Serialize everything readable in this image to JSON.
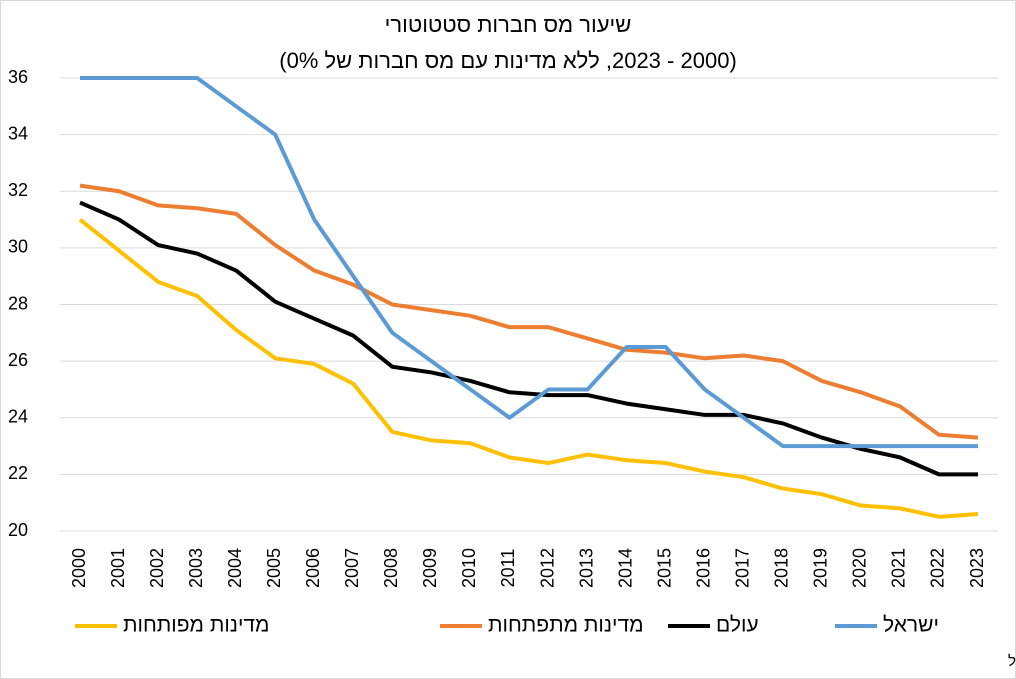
{
  "chart_data": {
    "type": "line",
    "title": "שיעור מס חברות סטטוטורי",
    "subtitle": "(2000 - 2023, ללא מדינות עם מס חברות של 0%)",
    "source": "מקור: OECD Statutory Corporate Income Tax Rates Database ועיבודי בנק ישראל",
    "categories": [
      "2000",
      "2001",
      "2002",
      "2003",
      "2004",
      "2005",
      "2006",
      "2007",
      "2008",
      "2009",
      "2010",
      "2011",
      "2012",
      "2013",
      "2014",
      "2015",
      "2016",
      "2017",
      "2018",
      "2019",
      "2020",
      "2021",
      "2022",
      "2023"
    ],
    "series": [
      {
        "name": "מדינות מפותחות",
        "color": "#ffc000",
        "values": [
          31.0,
          29.9,
          28.8,
          28.3,
          27.1,
          26.1,
          25.9,
          25.2,
          23.5,
          23.2,
          23.1,
          22.6,
          22.4,
          22.7,
          22.5,
          22.4,
          22.1,
          21.9,
          21.5,
          21.3,
          20.9,
          20.8,
          20.5,
          20.6
        ]
      },
      {
        "name": "מדינות מתפתחות",
        "color": "#ed7d31",
        "values": [
          32.2,
          32.0,
          31.5,
          31.4,
          31.2,
          30.1,
          29.2,
          28.7,
          28.0,
          27.8,
          27.6,
          27.2,
          27.2,
          26.8,
          26.4,
          26.3,
          26.1,
          26.2,
          26.0,
          25.3,
          24.9,
          24.4,
          23.4,
          23.3
        ]
      },
      {
        "name": "עולם",
        "color": "#000000",
        "values": [
          31.6,
          31.0,
          30.1,
          29.8,
          29.2,
          28.1,
          27.5,
          26.9,
          25.8,
          25.6,
          25.3,
          24.9,
          24.8,
          24.8,
          24.5,
          24.3,
          24.1,
          24.1,
          23.8,
          23.3,
          22.9,
          22.6,
          22.0,
          22.0
        ]
      },
      {
        "name": "ישראל",
        "color": "#5b9bd5",
        "values": [
          36,
          36,
          36,
          36,
          35,
          34,
          31,
          29,
          27,
          26,
          25,
          24,
          25,
          25,
          26.5,
          26.5,
          25,
          24,
          23,
          23,
          23,
          23,
          23,
          23
        ]
      }
    ],
    "ylim": [
      20,
      36
    ],
    "yticks": [
      20,
      22,
      24,
      26,
      28,
      30,
      32,
      34,
      36
    ],
    "grid": true
  }
}
